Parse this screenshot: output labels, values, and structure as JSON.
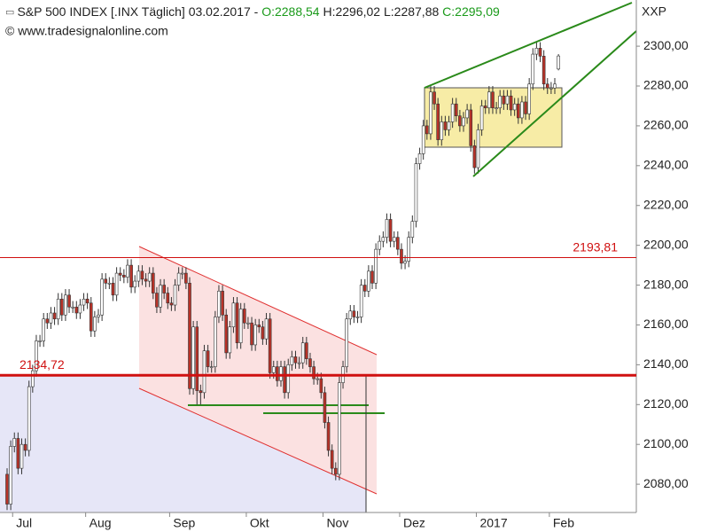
{
  "chart_data": {
    "type": "candlestick",
    "title": "S&P 500 INDEX [.INX  Täglich] 03.02.2017 -",
    "ohlc_labels": [
      "O:2288,54",
      "H:2296,02",
      "L:2287,88",
      "C:2295,09"
    ],
    "source": "© www.tradesignalonline.com",
    "symbol": "XXP",
    "categories": [
      null,
      null,
      "Jul",
      null,
      null,
      null,
      null,
      null,
      null,
      null,
      null,
      null,
      null,
      null,
      null,
      null,
      null,
      null,
      null,
      null,
      null,
      null,
      "Aug",
      null,
      null,
      null,
      null,
      null,
      null,
      null,
      null,
      null,
      null,
      null,
      null,
      null,
      null,
      null,
      null,
      null,
      null,
      null,
      null,
      null,
      null,
      "Sep",
      null,
      null,
      null,
      null,
      null,
      null,
      null,
      null,
      null,
      null,
      null,
      null,
      null,
      null,
      null,
      null,
      null,
      null,
      null,
      null,
      "Okt",
      null,
      null,
      null,
      null,
      null,
      null,
      null,
      null,
      null,
      null,
      null,
      null,
      null,
      null,
      null,
      null,
      null,
      null,
      null,
      null,
      "Nov",
      null,
      null,
      null,
      null,
      null,
      null,
      null,
      null,
      null,
      null,
      null,
      null,
      null,
      null,
      null,
      null,
      null,
      null,
      null,
      null,
      "Dez",
      null,
      null,
      null,
      null,
      null,
      null,
      null,
      null,
      null,
      null,
      null,
      null,
      null,
      null,
      null,
      null,
      null,
      null,
      null,
      null,
      "2017",
      null,
      null,
      null,
      null,
      null,
      null,
      null,
      null,
      null,
      null,
      null,
      null,
      null,
      null,
      null,
      null,
      null,
      null,
      null,
      "Feb",
      null,
      null
    ],
    "open": [
      2085,
      2070,
      2099,
      2103,
      2088,
      2100,
      2097,
      2129,
      2137,
      2152,
      2152,
      2163,
      2161,
      2166,
      2163,
      2173,
      2165,
      2175,
      2169,
      2169,
      2166,
      2170,
      2173,
      2171,
      2157,
      2164,
      2165,
      2183,
      2181,
      2181,
      2175,
      2186,
      2185,
      2184,
      2190,
      2179,
      2182,
      2187,
      2183,
      2182,
      2186,
      2176,
      2169,
      2180,
      2176,
      2171,
      2170,
      2180,
      2186,
      2186,
      2181,
      2128,
      2159,
      2127,
      2126,
      2147,
      2139,
      2139,
      2164,
      2177,
      2165,
      2146,
      2159,
      2171,
      2151,
      2168,
      2161,
      2161,
      2150,
      2160,
      2159,
      2153,
      2163,
      2136,
      2139,
      2132,
      2139,
      2126,
      2140,
      2144,
      2141,
      2141,
      2151,
      2143,
      2139,
      2133,
      2133,
      2126,
      2111,
      2097,
      2088,
      2085,
      2131,
      2139,
      2163,
      2167,
      2164,
      2164,
      2180,
      2177,
      2187,
      2181,
      2198,
      2202,
      2204,
      2213,
      2202,
      2204,
      2198,
      2191,
      2192,
      2204,
      2212,
      2241,
      2246,
      2260,
      2256,
      2277,
      2271,
      2253,
      2262,
      2258,
      2262,
      2271,
      2265,
      2260,
      2264,
      2268,
      2250,
      2239,
      2258,
      2270,
      2269,
      2277,
      2269,
      2269,
      2275,
      2271,
      2275,
      2268,
      2271,
      2264,
      2272,
      2266,
      2281,
      2296,
      2299,
      2295,
      2281,
      2279,
      2279,
      2288.54
    ],
    "high": [
      2088,
      2102,
      2106,
      2106,
      2103,
      2103,
      2132,
      2140,
      2155,
      2155,
      2166,
      2166,
      2169,
      2169,
      2176,
      2176,
      2178,
      2178,
      2172,
      2172,
      2173,
      2176,
      2176,
      2174,
      2167,
      2168,
      2186,
      2186,
      2184,
      2184,
      2189,
      2189,
      2188,
      2193,
      2193,
      2185,
      2190,
      2190,
      2186,
      2189,
      2189,
      2179,
      2183,
      2183,
      2179,
      2174,
      2183,
      2189,
      2189,
      2189,
      2184,
      2162,
      2162,
      2130,
      2150,
      2150,
      2142,
      2167,
      2180,
      2180,
      2168,
      2162,
      2174,
      2174,
      2171,
      2171,
      2164,
      2164,
      2163,
      2163,
      2162,
      2166,
      2166,
      2142,
      2142,
      2142,
      2142,
      2143,
      2147,
      2147,
      2144,
      2154,
      2154,
      2146,
      2142,
      2136,
      2136,
      2129,
      2114,
      2100,
      2091,
      2134,
      2142,
      2166,
      2170,
      2170,
      2167,
      2183,
      2183,
      2190,
      2190,
      2201,
      2205,
      2207,
      2216,
      2216,
      2207,
      2207,
      2201,
      2195,
      2207,
      2215,
      2244,
      2249,
      2263,
      2263,
      2280,
      2280,
      2274,
      2265,
      2265,
      2265,
      2274,
      2274,
      2268,
      2267,
      2271,
      2271,
      2253,
      2261,
      2273,
      2273,
      2280,
      2280,
      2272,
      2278,
      2278,
      2278,
      2278,
      2274,
      2274,
      2275,
      2275,
      2284,
      2299,
      2302,
      2302,
      2298,
      2284,
      2282,
      2284,
      2296.02
    ],
    "low": [
      2067,
      2067,
      2096,
      2085,
      2085,
      2094,
      2094,
      2126,
      2134,
      2149,
      2149,
      2158,
      2158,
      2160,
      2160,
      2162,
      2162,
      2166,
      2166,
      2163,
      2163,
      2167,
      2168,
      2154,
      2154,
      2161,
      2162,
      2178,
      2178,
      2172,
      2172,
      2182,
      2181,
      2181,
      2176,
      2176,
      2179,
      2180,
      2179,
      2179,
      2173,
      2166,
      2166,
      2173,
      2168,
      2167,
      2167,
      2177,
      2183,
      2178,
      2125,
      2125,
      2120,
      2120,
      2123,
      2136,
      2136,
      2136,
      2161,
      2162,
      2143,
      2143,
      2156,
      2148,
      2148,
      2158,
      2158,
      2147,
      2147,
      2156,
      2150,
      2150,
      2133,
      2133,
      2129,
      2129,
      2123,
      2123,
      2137,
      2138,
      2138,
      2138,
      2140,
      2136,
      2130,
      2130,
      2123,
      2108,
      2094,
      2085,
      2082,
      2082,
      2128,
      2136,
      2160,
      2161,
      2161,
      2161,
      2174,
      2174,
      2178,
      2178,
      2195,
      2199,
      2201,
      2199,
      2199,
      2195,
      2188,
      2188,
      2189,
      2201,
      2209,
      2238,
      2243,
      2253,
      2253,
      2268,
      2250,
      2250,
      2255,
      2255,
      2259,
      2262,
      2257,
      2257,
      2261,
      2247,
      2236,
      2236,
      2255,
      2266,
      2266,
      2266,
      2266,
      2266,
      2268,
      2268,
      2265,
      2265,
      2261,
      2261,
      2263,
      2263,
      2278,
      2293,
      2292,
      2278,
      2276,
      2276,
      2276,
      2287.88
    ],
    "close": [
      2070,
      2099,
      2103,
      2088,
      2100,
      2097,
      2129,
      2137,
      2152,
      2152,
      2163,
      2161,
      2166,
      2163,
      2173,
      2165,
      2175,
      2169,
      2169,
      2166,
      2170,
      2173,
      2171,
      2157,
      2164,
      2165,
      2183,
      2181,
      2181,
      2175,
      2186,
      2185,
      2184,
      2190,
      2179,
      2182,
      2187,
      2183,
      2182,
      2186,
      2176,
      2169,
      2180,
      2176,
      2171,
      2170,
      2180,
      2186,
      2186,
      2181,
      2128,
      2159,
      2127,
      2126,
      2147,
      2139,
      2139,
      2164,
      2177,
      2165,
      2146,
      2159,
      2171,
      2151,
      2168,
      2161,
      2161,
      2150,
      2160,
      2159,
      2153,
      2163,
      2136,
      2139,
      2132,
      2139,
      2126,
      2140,
      2144,
      2141,
      2141,
      2151,
      2143,
      2139,
      2133,
      2133,
      2126,
      2111,
      2097,
      2088,
      2085,
      2131,
      2139,
      2163,
      2167,
      2164,
      2164,
      2180,
      2177,
      2187,
      2181,
      2198,
      2202,
      2204,
      2213,
      2202,
      2204,
      2198,
      2191,
      2192,
      2204,
      2212,
      2241,
      2246,
      2260,
      2256,
      2277,
      2271,
      2253,
      2262,
      2258,
      2262,
      2271,
      2265,
      2260,
      2264,
      2268,
      2250,
      2239,
      2258,
      2270,
      2269,
      2277,
      2269,
      2269,
      2275,
      2271,
      2275,
      2268,
      2271,
      2264,
      2272,
      2266,
      2281,
      2296,
      2299,
      2295,
      2281,
      2279,
      2279,
      2281,
      2295.09
    ],
    "up_color": "#ffffff",
    "down_color": "#b83228",
    "ylim": [
      2065.8,
      2323.2
    ],
    "yticks": [
      {
        "value": 2080,
        "label": "2080,00"
      },
      {
        "value": 2100,
        "label": "2100,00"
      },
      {
        "value": 2120,
        "label": "2120,00"
      },
      {
        "value": 2140,
        "label": "2140,00"
      },
      {
        "value": 2160,
        "label": "2160,00"
      },
      {
        "value": 2180,
        "label": "2180,00"
      },
      {
        "value": 2200,
        "label": "2200,00"
      },
      {
        "value": 2220,
        "label": "2220,00"
      },
      {
        "value": 2240,
        "label": "2240,00"
      },
      {
        "value": 2260,
        "label": "2260,00"
      },
      {
        "value": 2280,
        "label": "2280,00"
      },
      {
        "value": 2300,
        "label": "2300,00"
      }
    ],
    "hlines": [
      {
        "value": 2193.81,
        "label": "2193,81",
        "line_width": 1,
        "color": "#d01010"
      },
      {
        "value": 2134.72,
        "label": "2134,72",
        "line_width": 3,
        "color": "#d01010"
      }
    ]
  }
}
